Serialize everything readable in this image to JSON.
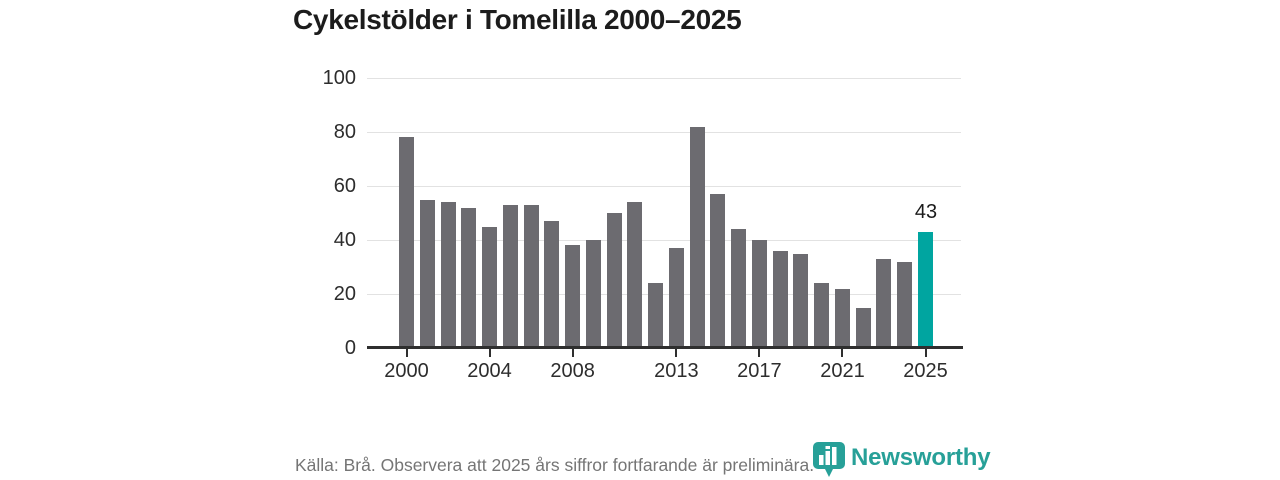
{
  "chart": {
    "title": "Cykelstölder i Tomelilla 2000–2025",
    "annotation": "43"
  },
  "chart_data": {
    "type": "bar",
    "title": "Cykelstölder i Tomelilla 2000–2025",
    "categories": [
      "2000",
      "2001",
      "2002",
      "2003",
      "2004",
      "2005",
      "2006",
      "2007",
      "2008",
      "2009",
      "2010",
      "2011",
      "2012",
      "2013",
      "2014",
      "2015",
      "2016",
      "2017",
      "2018",
      "2019",
      "2020",
      "2021",
      "2022",
      "2023",
      "2024",
      "2025"
    ],
    "values": [
      78,
      55,
      54,
      52,
      45,
      53,
      53,
      47,
      38,
      40,
      50,
      54,
      24,
      37,
      82,
      57,
      44,
      40,
      36,
      35,
      24,
      22,
      15,
      33,
      32,
      43
    ],
    "highlight_category": "2025",
    "highlight_value_label": "43",
    "xlabel": "",
    "ylabel": "",
    "ylim": [
      0,
      100
    ],
    "grid": "horizontal gridlines on",
    "legend": "none",
    "y_ticks": [
      100,
      80,
      60,
      40,
      20,
      0
    ],
    "x_ticks": [
      {
        "index": 0,
        "label": "2000"
      },
      {
        "index": 4,
        "label": "2004"
      },
      {
        "index": 8,
        "label": "2008"
      },
      {
        "index": 13,
        "label": "2013"
      },
      {
        "index": 17,
        "label": "2017"
      },
      {
        "index": 21,
        "label": "2021"
      },
      {
        "index": 25,
        "label": "2025"
      }
    ],
    "bar_color": "#6c6b70",
    "highlight_color": "#00a5a0"
  },
  "footer": {
    "source": "Källa: Brå. Observera att 2025 års siffror fortfarande är preliminära.",
    "logo_text": "Newsworthy"
  },
  "brand": {
    "teal": "#27a098"
  }
}
